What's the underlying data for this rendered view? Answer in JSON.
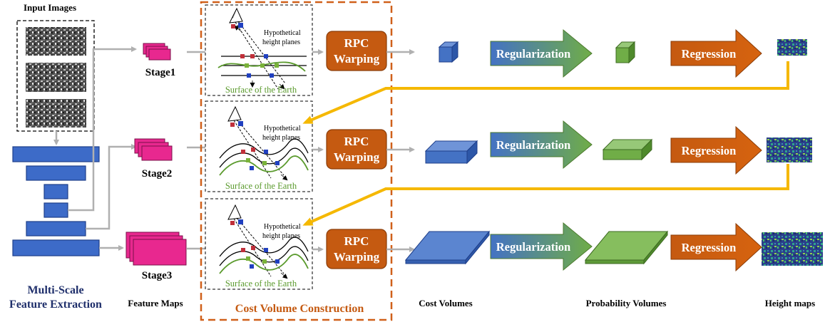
{
  "titles": {
    "input_images": "Input Images",
    "multi_scale_line1": "Multi-Scale",
    "multi_scale_line2": "Feature Extraction",
    "feature_maps": "Feature Maps",
    "cost_volume_construction": "Cost Volume Construction",
    "cost_volumes": "Cost Volumes",
    "probability_volumes": "Probability Volumes",
    "height_maps": "Height maps"
  },
  "stages": [
    {
      "label": "Stage1"
    },
    {
      "label": "Stage2"
    },
    {
      "label": "Stage3"
    }
  ],
  "warp_panel": {
    "hypothetical_line1": "Hypothetical",
    "hypothetical_line2": "height planes",
    "surface": "Surface of  the Earth"
  },
  "rpc": {
    "line1": "RPC",
    "line2": "Warping"
  },
  "regularization": "Regularization",
  "regression": "Regression",
  "colors": {
    "stage_pink": "#e8288f",
    "rpc_orange": "#c55a11",
    "cost_blue": "#4472c4",
    "prob_green": "#70ad47",
    "encoder_blue": "#3d6bc8",
    "feedback_yellow": "#f5b800",
    "dashed_orange": "#d0601a"
  }
}
